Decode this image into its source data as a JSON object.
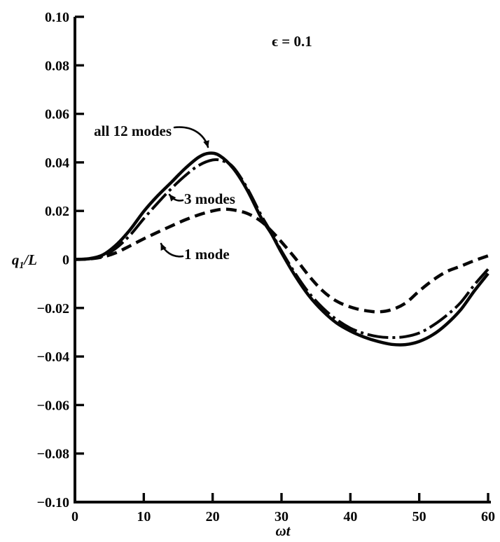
{
  "figure": {
    "background": "#ffffff",
    "ink": "#070707"
  },
  "chart_data": {
    "type": "line",
    "title": "",
    "xlabel": "ωt",
    "ylabel": {
      "base": "q",
      "sub": "1",
      "rest": "/L"
    },
    "xlim": [
      0,
      60
    ],
    "ylim": [
      -0.1,
      0.1
    ],
    "grid": false,
    "legend_position": "inline-annotations",
    "x_ticks": [
      0,
      10,
      20,
      30,
      40,
      50,
      60
    ],
    "x_tick_labels": [
      "0",
      "10",
      "20",
      "30",
      "40",
      "50",
      "60"
    ],
    "y_ticks": [
      0.1,
      0.08,
      0.06,
      0.04,
      0.02,
      0,
      -0.02,
      -0.04,
      -0.06,
      -0.08,
      -0.1
    ],
    "y_tick_labels": [
      "0.10",
      "0.08",
      "0.06",
      "0.04",
      "0.02",
      "0",
      "−0.02",
      "−0.04",
      "−0.06",
      "−0.08",
      "−0.10"
    ],
    "annotations": {
      "epsilon": "ϵ = 0.1"
    },
    "series": [
      {
        "name": "all 12 modes",
        "style": "solid",
        "stroke_width": 4.5,
        "points": [
          [
            0,
            0
          ],
          [
            2,
            0.0003
          ],
          [
            4,
            0.0018
          ],
          [
            6,
            0.006
          ],
          [
            8,
            0.0122
          ],
          [
            10,
            0.0198
          ],
          [
            12,
            0.0262
          ],
          [
            14,
            0.0318
          ],
          [
            16,
            0.0375
          ],
          [
            18,
            0.0422
          ],
          [
            19.5,
            0.0438
          ],
          [
            21,
            0.0428
          ],
          [
            23,
            0.0375
          ],
          [
            25,
            0.0287
          ],
          [
            27,
            0.0174
          ],
          [
            28.5,
            0.0107
          ],
          [
            30,
            0.0028
          ],
          [
            32,
            -0.0068
          ],
          [
            34,
            -0.015
          ],
          [
            36,
            -0.0213
          ],
          [
            38,
            -0.0262
          ],
          [
            40,
            -0.0295
          ],
          [
            42,
            -0.032
          ],
          [
            44,
            -0.0338
          ],
          [
            46,
            -0.035
          ],
          [
            48,
            -0.0351
          ],
          [
            50,
            -0.0338
          ],
          [
            52,
            -0.031
          ],
          [
            54,
            -0.0266
          ],
          [
            56,
            -0.0208
          ],
          [
            58,
            -0.013
          ],
          [
            60,
            -0.0058
          ]
        ]
      },
      {
        "name": "3 modes",
        "style": "dash-dot",
        "stroke_width": 4,
        "points": [
          [
            0,
            0
          ],
          [
            2,
            0.0002
          ],
          [
            4,
            0.0013
          ],
          [
            6,
            0.0047
          ],
          [
            8,
            0.01
          ],
          [
            10,
            0.0168
          ],
          [
            12,
            0.0232
          ],
          [
            14,
            0.0292
          ],
          [
            16,
            0.0345
          ],
          [
            18,
            0.0388
          ],
          [
            20,
            0.041
          ],
          [
            21.5,
            0.0406
          ],
          [
            23,
            0.038
          ],
          [
            25,
            0.0295
          ],
          [
            27,
            0.0185
          ],
          [
            28.5,
            0.0112
          ],
          [
            30,
            0.0035
          ],
          [
            32,
            -0.0058
          ],
          [
            34,
            -0.0138
          ],
          [
            36,
            -0.02
          ],
          [
            38,
            -0.0248
          ],
          [
            40,
            -0.0283
          ],
          [
            42,
            -0.0305
          ],
          [
            44,
            -0.0318
          ],
          [
            46,
            -0.0322
          ],
          [
            48,
            -0.0318
          ],
          [
            50,
            -0.0303
          ],
          [
            52,
            -0.0272
          ],
          [
            54,
            -0.023
          ],
          [
            56,
            -0.0178
          ],
          [
            58,
            -0.0105
          ],
          [
            60,
            -0.004
          ]
        ]
      },
      {
        "name": "1 mode",
        "style": "dashed",
        "stroke_width": 4.5,
        "points": [
          [
            0,
            0
          ],
          [
            2,
            0.0002
          ],
          [
            4,
            0.001
          ],
          [
            6,
            0.0028
          ],
          [
            8,
            0.0056
          ],
          [
            10,
            0.0085
          ],
          [
            12,
            0.0112
          ],
          [
            14,
            0.0138
          ],
          [
            16,
            0.0163
          ],
          [
            18,
            0.0184
          ],
          [
            20,
            0.02
          ],
          [
            21.5,
            0.0207
          ],
          [
            23,
            0.0204
          ],
          [
            25,
            0.019
          ],
          [
            27,
            0.0158
          ],
          [
            28.5,
            0.0118
          ],
          [
            30,
            0.0072
          ],
          [
            32,
            0.0005
          ],
          [
            34,
            -0.0068
          ],
          [
            36,
            -0.013
          ],
          [
            38,
            -0.0172
          ],
          [
            40,
            -0.0196
          ],
          [
            42,
            -0.021
          ],
          [
            44,
            -0.0216
          ],
          [
            46,
            -0.0207
          ],
          [
            48,
            -0.018
          ],
          [
            50,
            -0.013
          ],
          [
            52,
            -0.0085
          ],
          [
            54,
            -0.005
          ],
          [
            56,
            -0.0028
          ],
          [
            58,
            -0.0005
          ],
          [
            60,
            0.0015
          ]
        ]
      }
    ]
  }
}
